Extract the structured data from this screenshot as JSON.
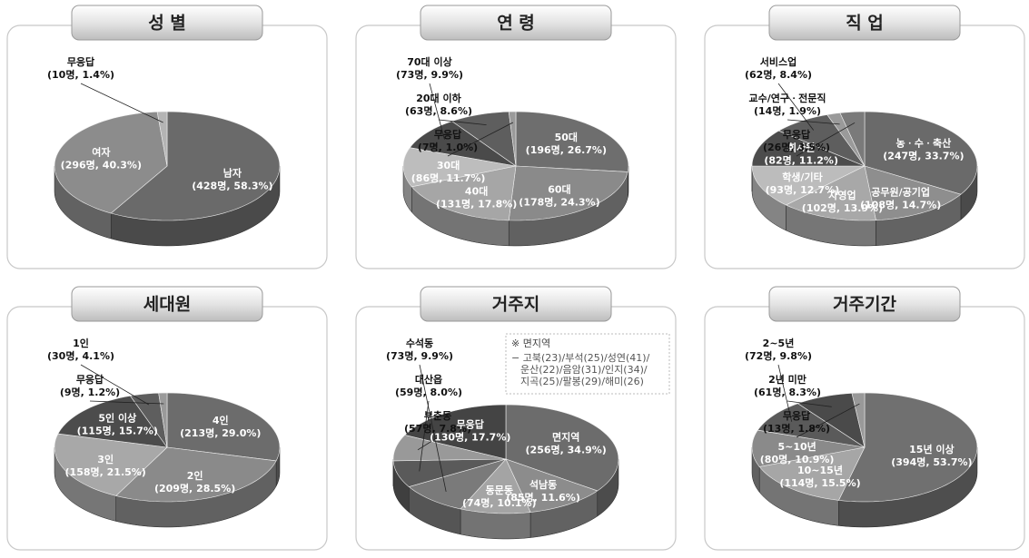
{
  "chart_data": [
    {
      "type": "pie",
      "title": "성 별",
      "categories": [
        "남자",
        "여자",
        "무응답"
      ],
      "values": [
        58.3,
        40.3,
        1.4
      ],
      "value_labels": [
        "(428명, 58.3%)",
        "(296명, 40.3%)",
        "(10명, 1.4%)"
      ],
      "colors": [
        "#6a6a6a",
        "#8c8c8c",
        "#b4b4b4"
      ]
    },
    {
      "type": "pie",
      "title": "연 령",
      "categories": [
        "50대",
        "60대",
        "40대",
        "30대",
        "70대 이상",
        "20대 이하",
        "무응답"
      ],
      "values": [
        26.7,
        24.3,
        17.8,
        11.7,
        9.9,
        8.6,
        1.0
      ],
      "value_labels": [
        "(196명, 26.7%)",
        "(178명, 24.3%)",
        "(131명, 17.8%)",
        "(86명, 11.7%)",
        "(73명, 9.9%)",
        "(63명, 8.6%)",
        "(7명, 1.0%)"
      ],
      "colors": [
        "#6e6e6e",
        "#8a8a8a",
        "#a6a6a6",
        "#bdbdbd",
        "#4a4a4a",
        "#5e5e5e",
        "#9a9a9a"
      ]
    },
    {
      "type": "pie",
      "title": "직 업",
      "categories": [
        "농ㆍ수ㆍ축산",
        "공무원/공기업",
        "자영업",
        "학생/기타",
        "회사원",
        "서비스업",
        "교수/연구ㆍ전문직",
        "무응답"
      ],
      "values": [
        33.7,
        14.7,
        13.9,
        12.7,
        11.2,
        8.4,
        1.9,
        3.5
      ],
      "value_labels": [
        "(247명, 33.7%)",
        "(108명, 14.7%)",
        "(102명, 13.9%)",
        "(93명, 12.7%)",
        "(82명, 11.2%)",
        "(62명, 8.4%)",
        "(14명, 1.9%)",
        "(26명, 3.5%)"
      ],
      "colors": [
        "#6a6a6a",
        "#8e8e8e",
        "#a8a8a8",
        "#bcbcbc",
        "#4c4c4c",
        "#5e5e5e",
        "#9a9a9a",
        "#7a7a7a"
      ]
    },
    {
      "type": "pie",
      "title": "세대원",
      "categories": [
        "4인",
        "2인",
        "3인",
        "5인 이상",
        "1인",
        "무응답"
      ],
      "values": [
        29.0,
        28.5,
        21.5,
        15.7,
        4.1,
        1.2
      ],
      "value_labels": [
        "(213명, 29.0%)",
        "(209명, 28.5%)",
        "(158명, 21.5%)",
        "(115명, 15.7%)",
        "(30명, 4.1%)",
        "(9명, 1.2%)"
      ],
      "colors": [
        "#6c6c6c",
        "#8a8a8a",
        "#a8a8a8",
        "#4c4c4c",
        "#5e5e5e",
        "#9a9a9a"
      ]
    },
    {
      "type": "pie",
      "title": "거주지",
      "categories": [
        "면지역",
        "석남동",
        "동문동",
        "수석동",
        "대산읍",
        "부춘동",
        "무응답"
      ],
      "values": [
        34.9,
        11.6,
        10.1,
        9.9,
        8.0,
        7.8,
        17.7
      ],
      "value_labels": [
        "(256명, 34.9%)",
        "(85명, 11.6%)",
        "(74명, 10.1%)",
        "(73명, 9.9%)",
        "(59명, 8.0%)",
        "(57명, 7.8%)",
        "(130명, 17.7%)"
      ],
      "colors": [
        "#6c6c6c",
        "#8c8c8c",
        "#a4a4a4",
        "#7a7a7a",
        "#5a5a5a",
        "#999999",
        "#444444"
      ],
      "note": {
        "title": "※ 면지역",
        "lines": [
          "− 고북(23)/부석(25)/성연(41)/",
          "운산(22)/음암(31)/인지(34)/",
          "지곡(25)/팔봉(29)/해미(26)"
        ]
      }
    },
    {
      "type": "pie",
      "title": "거주기간",
      "categories": [
        "15년 이상",
        "10~15년",
        "5~10년",
        "2~5년",
        "2년 미만",
        "무응답"
      ],
      "values": [
        53.7,
        15.5,
        10.9,
        9.8,
        8.3,
        1.8
      ],
      "value_labels": [
        "(394명, 53.7%)",
        "(114명, 15.5%)",
        "(80명, 10.9%)",
        "(72명, 9.8%)",
        "(61명, 8.3%)",
        "(13명, 1.8%)"
      ],
      "colors": [
        "#707070",
        "#a6a6a6",
        "#8a8a8a",
        "#5a5a5a",
        "#4a4a4a",
        "#999999"
      ]
    }
  ]
}
